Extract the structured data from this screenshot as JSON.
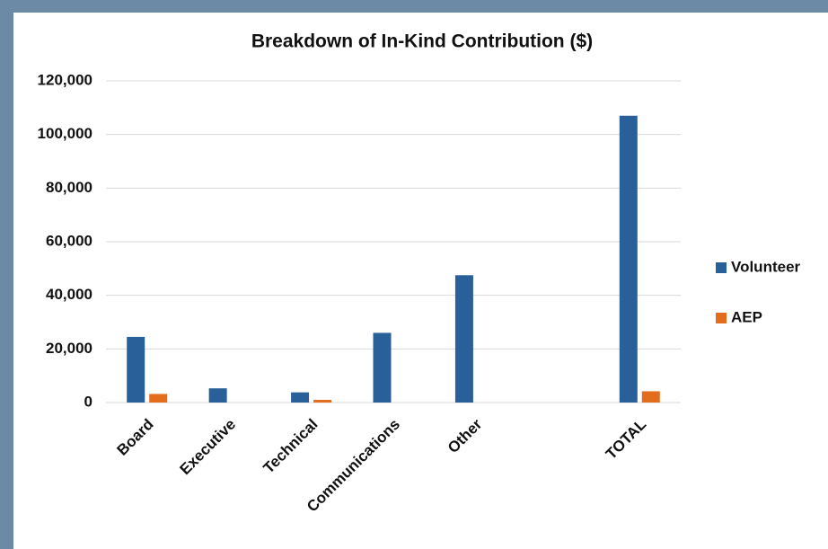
{
  "chart_data": {
    "type": "bar",
    "title": "Breakdown of In-Kind Contribution ($)",
    "categories": [
      "Board",
      "Executive",
      "Technical",
      "Communications",
      "Other",
      null,
      "TOTAL"
    ],
    "series": [
      {
        "name": "Volunteer",
        "color": "#2a6099",
        "values": [
          24500,
          5300,
          3800,
          26000,
          47500,
          null,
          107000
        ]
      },
      {
        "name": "AEP",
        "color": "#e36c1d",
        "values": [
          3200,
          0,
          1000,
          0,
          0,
          null,
          4200
        ]
      }
    ],
    "ylim": [
      0,
      120000
    ],
    "yticks": [
      0,
      {
        "value": 20000,
        "label": "20,000"
      },
      {
        "value": 40000,
        "label": "40,000"
      },
      {
        "value": 60000,
        "label": "60,000"
      },
      {
        "value": 80000,
        "label": "80,000"
      },
      {
        "value": 100000,
        "label": "100,000"
      },
      {
        "value": 120000,
        "label": "120,000"
      }
    ],
    "grid": true,
    "legend": "right"
  }
}
